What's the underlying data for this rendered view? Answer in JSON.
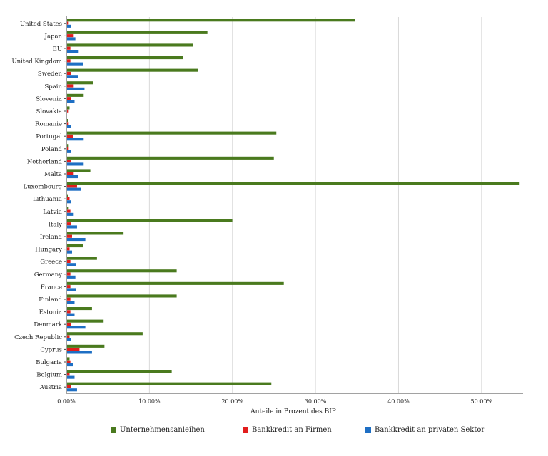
{
  "chart_data": {
    "type": "bar",
    "orientation": "horizontal",
    "xlabel": "Anteile in Prozent des BIP",
    "xlim": [
      0,
      55
    ],
    "xticks": [
      0,
      10,
      20,
      30,
      40,
      50
    ],
    "xtick_labels": [
      "0.00%",
      "10.00%",
      "20.00%",
      "30.00%",
      "40.00%",
      "50.00%"
    ],
    "grid": true,
    "legend_position": "bottom",
    "categories": [
      "United States",
      "Japan",
      "EU",
      "United Kingdom",
      "Sweden",
      "Spain",
      "Slovenia",
      "Slovakia",
      "Romanie",
      "Portugal",
      "Poland",
      "Netherland",
      "Malta",
      "Luxembourg",
      "Lithuania",
      "Latvia",
      "Italy",
      "Ireland",
      "Hungary",
      "Greece",
      "Germany",
      "France",
      "Finland",
      "Estonia",
      "Denmark",
      "Czech Republic",
      "Cyprus",
      "Bulgaria",
      "Belgium",
      "Austria"
    ],
    "series": [
      {
        "name": "Unternehmensanleihen",
        "color": "#4a7a1e",
        "values": [
          34.7,
          16.9,
          15.2,
          14.0,
          15.8,
          3.1,
          2.0,
          0.3,
          0.1,
          25.2,
          0.2,
          24.9,
          2.8,
          54.5,
          0.1,
          0.2,
          19.9,
          6.8,
          1.9,
          3.6,
          13.2,
          26.1,
          13.2,
          3.0,
          4.4,
          9.1,
          4.5,
          0.3,
          12.6,
          24.6
        ]
      },
      {
        "name": "Bankkredit an Firmen",
        "color": "#e21d1d",
        "values": [
          0.2,
          0.8,
          0.4,
          0.4,
          0.5,
          0.8,
          0.5,
          0.2,
          0.2,
          0.7,
          0.2,
          0.5,
          0.8,
          1.2,
          0.3,
          0.4,
          0.5,
          0.6,
          0.3,
          0.4,
          0.4,
          0.4,
          0.4,
          0.4,
          0.5,
          0.3,
          1.5,
          0.4,
          0.3,
          0.5
        ]
      },
      {
        "name": "Bankkredit an privaten Sektor",
        "color": "#1e6fc4",
        "values": [
          0.5,
          1.0,
          1.4,
          1.9,
          1.3,
          2.1,
          0.9,
          0.0,
          0.5,
          2.0,
          0.5,
          2.0,
          1.3,
          1.7,
          0.5,
          0.8,
          1.2,
          2.2,
          0.6,
          1.1,
          1.0,
          1.1,
          0.9,
          0.9,
          2.2,
          0.5,
          3.0,
          0.7,
          0.9,
          1.2
        ]
      }
    ]
  }
}
